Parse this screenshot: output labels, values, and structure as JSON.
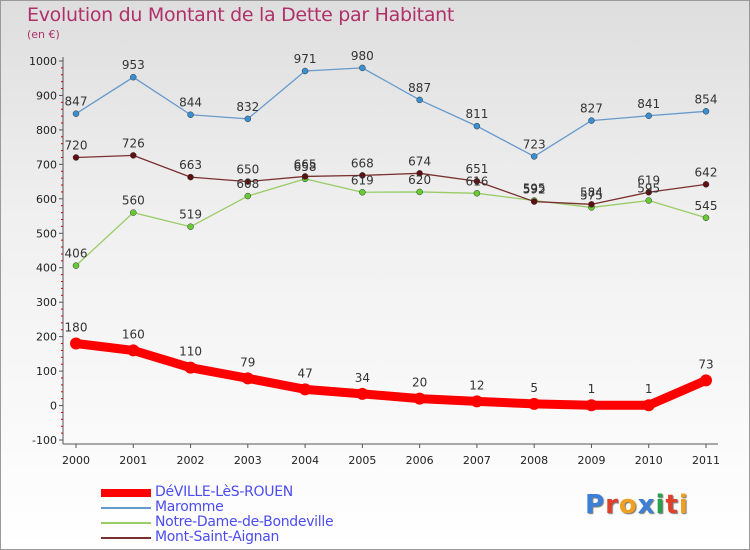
{
  "title": "Evolution du Montant de la Dette par Habitant",
  "unit_label": "(en €)",
  "logo": {
    "text": "Proxiti",
    "colors": [
      "#3b7fd6",
      "#e0402a",
      "#f0a020",
      "#3b7fd6",
      "#2aa04a",
      "#e0402a",
      "#f0a020"
    ]
  },
  "chart_data": {
    "type": "line",
    "title": "Evolution du Montant de la Dette par Habitant",
    "xlabel": "",
    "ylabel": "(en €)",
    "x": [
      "2000",
      "2001",
      "2002",
      "2003",
      "2004",
      "2005",
      "2006",
      "2007",
      "2008",
      "2009",
      "2010",
      "2011"
    ],
    "ylim": [
      -100,
      1000
    ],
    "yticks": [
      -100,
      0,
      100,
      200,
      300,
      400,
      500,
      600,
      700,
      800,
      900,
      1000
    ],
    "grid": false,
    "legend_position": "bottom",
    "series": [
      {
        "name": "DéVILLE-LèS-ROUEN",
        "color": "#ff0000",
        "thick": true,
        "values": [
          180,
          160,
          110,
          79,
          47,
          34,
          20,
          12,
          5,
          1,
          1,
          73
        ]
      },
      {
        "name": "Maromme",
        "color": "#6699cc",
        "marker": "#3a8fd0",
        "values": [
          847,
          953,
          844,
          832,
          971,
          980,
          887,
          811,
          723,
          827,
          841,
          854
        ]
      },
      {
        "name": "Notre-Dame-de-Bondeville",
        "color": "#99cc66",
        "marker": "#66cc33",
        "values": [
          406,
          560,
          519,
          608,
          658,
          619,
          620,
          616,
          595,
          575,
          595,
          545
        ]
      },
      {
        "name": "Mont-Saint-Aignan",
        "color": "#7a3030",
        "marker": "#5c1010",
        "values": [
          720,
          726,
          663,
          650,
          665,
          668,
          674,
          651,
          592,
          584,
          619,
          642
        ]
      }
    ]
  }
}
